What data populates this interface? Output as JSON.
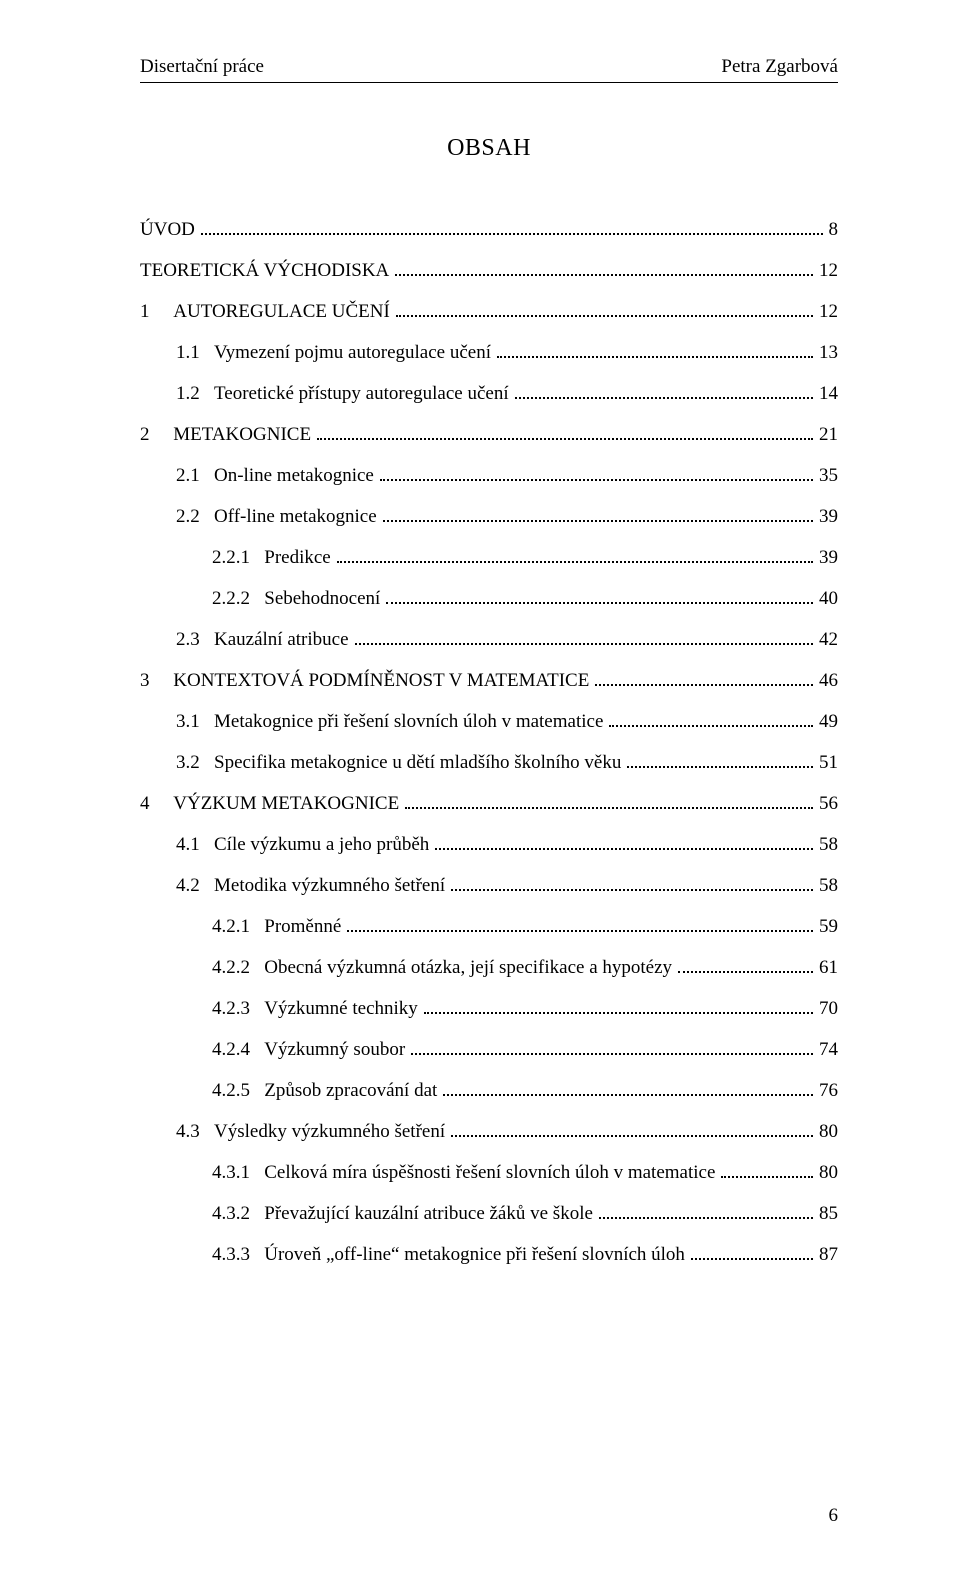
{
  "header": {
    "left": "Disertační práce",
    "right": "Petra Zgarbová"
  },
  "title": "OBSAH",
  "page_number": "6",
  "toc": [
    {
      "level": 0,
      "num": "",
      "label": "ÚVOD",
      "page": "8",
      "chapter": true
    },
    {
      "level": 0,
      "num": "",
      "label": "TEORETICKÁ VÝCHODISKA",
      "page": "12",
      "chapter": true
    },
    {
      "level": 1,
      "num": "1",
      "label": "AUTOREGULACE UČENÍ",
      "page": "12",
      "chapter": true
    },
    {
      "level": 2,
      "num": "1.1",
      "label": "Vymezení pojmu autoregulace učení",
      "page": "13"
    },
    {
      "level": 2,
      "num": "1.2",
      "label": "Teoretické přístupy autoregulace učení",
      "page": "14"
    },
    {
      "level": 1,
      "num": "2",
      "label": "METAKOGNICE",
      "page": "21",
      "chapter": true
    },
    {
      "level": 2,
      "num": "2.1",
      "label": "On-line metakognice",
      "page": "35"
    },
    {
      "level": 2,
      "num": "2.2",
      "label": "Off-line metakognice",
      "page": "39"
    },
    {
      "level": 3,
      "num": "2.2.1",
      "label": "Predikce",
      "page": "39"
    },
    {
      "level": 3,
      "num": "2.2.2",
      "label": "Sebehodnocení",
      "page": "40"
    },
    {
      "level": 2,
      "num": "2.3",
      "label": "Kauzální atribuce",
      "page": "42"
    },
    {
      "level": 1,
      "num": "3",
      "label": "KONTEXTOVÁ PODMÍNĚNOST V MATEMATICE",
      "page": "46",
      "chapter": true
    },
    {
      "level": 2,
      "num": "3.1",
      "label": "Metakognice při řešení slovních úloh v matematice",
      "page": "49"
    },
    {
      "level": 2,
      "num": "3.2",
      "label": "Specifika metakognice u dětí mladšího školního věku",
      "page": "51"
    },
    {
      "level": 1,
      "num": "4",
      "label": "VÝZKUM METAKOGNICE",
      "page": "56",
      "chapter": true
    },
    {
      "level": 2,
      "num": "4.1",
      "label": "Cíle výzkumu a jeho průběh",
      "page": "58"
    },
    {
      "level": 2,
      "num": "4.2",
      "label": "Metodika výzkumného šetření",
      "page": "58"
    },
    {
      "level": 3,
      "num": "4.2.1",
      "label": "Proměnné",
      "page": "59"
    },
    {
      "level": 3,
      "num": "4.2.2",
      "label": "Obecná výzkumná otázka, její specifikace a hypotézy",
      "page": "61"
    },
    {
      "level": 3,
      "num": "4.2.3",
      "label": "Výzkumné techniky",
      "page": "70"
    },
    {
      "level": 3,
      "num": "4.2.4",
      "label": "Výzkumný soubor",
      "page": "74"
    },
    {
      "level": 3,
      "num": "4.2.5",
      "label": "Způsob zpracování dat",
      "page": "76"
    },
    {
      "level": 2,
      "num": "4.3",
      "label": "Výsledky výzkumného šetření",
      "page": "80"
    },
    {
      "level": 3,
      "num": "4.3.1",
      "label": "Celková míra úspěšnosti řešení slovních úloh v matematice",
      "page": "80"
    },
    {
      "level": 3,
      "num": "4.3.2",
      "label": "Převažující kauzální atribuce žáků ve škole",
      "page": "85"
    },
    {
      "level": 3,
      "num": "4.3.3",
      "label": "Úroveň „off-line“ metakognice při řešení slovních úloh",
      "page": "87"
    }
  ]
}
